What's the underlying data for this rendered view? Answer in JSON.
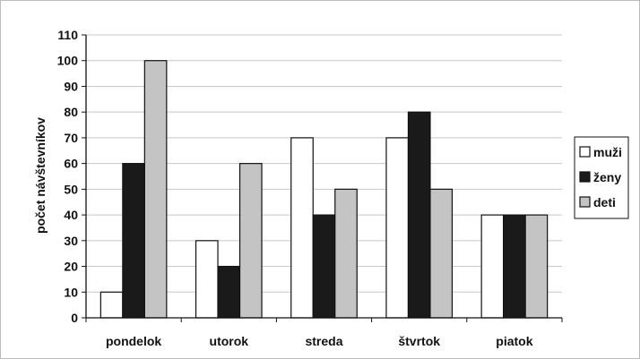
{
  "chart_data": {
    "type": "bar",
    "title": "",
    "xlabel": "",
    "ylabel": "počet návštevníkov",
    "ylim": [
      0,
      110
    ],
    "yticks": [
      0,
      10,
      20,
      30,
      40,
      50,
      60,
      70,
      80,
      90,
      100,
      110
    ],
    "grid": true,
    "legend_position": "right",
    "categories": [
      "pondelok",
      "utorok",
      "streda",
      "štvrtok",
      "piatok"
    ],
    "series": [
      {
        "name": "muži",
        "values": [
          10,
          30,
          70,
          70,
          40
        ],
        "color": "#ffffff"
      },
      {
        "name": "ženy",
        "values": [
          60,
          20,
          40,
          80,
          40
        ],
        "color": "#1a1a1a"
      },
      {
        "name": "deti",
        "values": [
          100,
          60,
          50,
          50,
          40
        ],
        "color": "#c4c4c4"
      }
    ]
  }
}
